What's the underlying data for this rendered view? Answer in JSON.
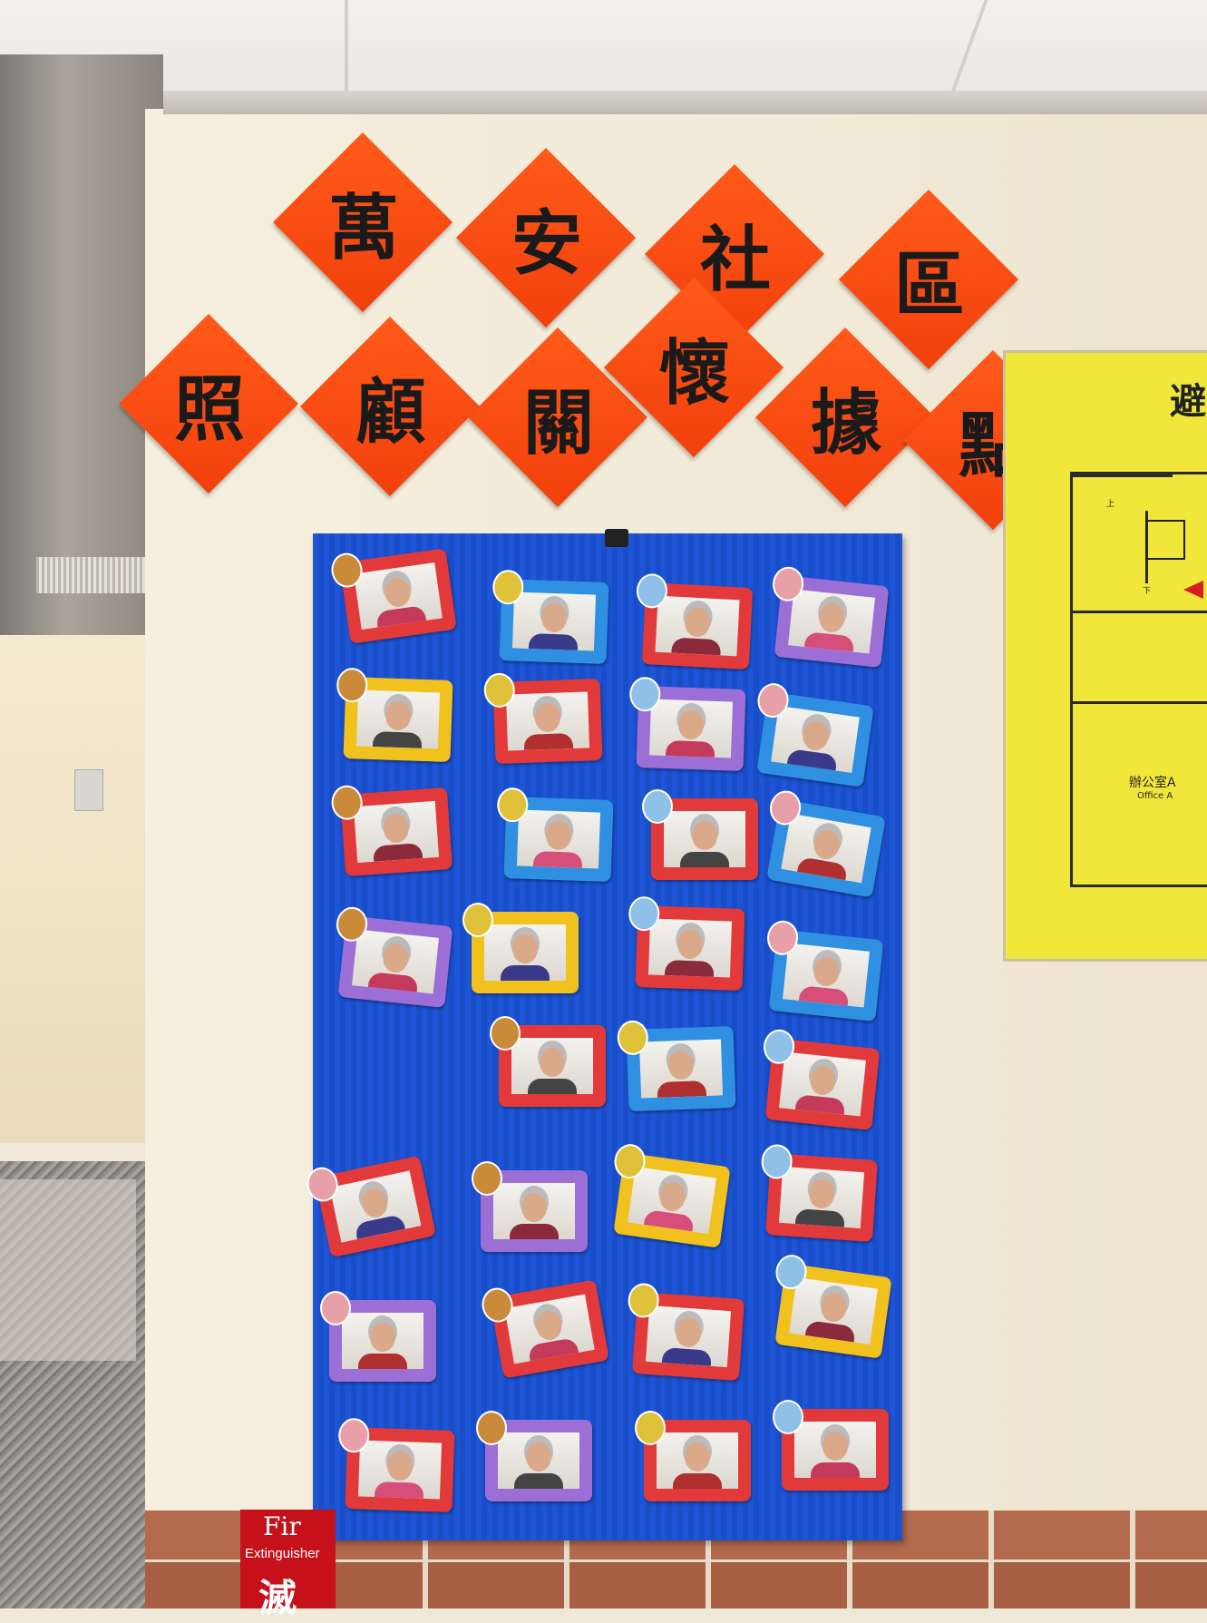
{
  "banner": {
    "line1": [
      "萬",
      "安",
      "社",
      "區"
    ],
    "line2": [
      "照",
      "顧",
      "關",
      "懷",
      "據",
      "點"
    ],
    "color": "#f2400c"
  },
  "evacuation_sign": {
    "title": "避",
    "room_label_cn": "辦公室A",
    "room_label_en": "Office A",
    "stairs_up": "上",
    "stairs_down": "下"
  },
  "extinguisher_sign": {
    "top": "Fir",
    "en": "Extinguisher",
    "cn": "滅"
  },
  "photo_board": {
    "background": "#1d55d6",
    "frame_colors": [
      "#e23a3a",
      "#2f8fe0",
      "#9b6fd6",
      "#f1c21d"
    ],
    "photo_count": 31
  }
}
